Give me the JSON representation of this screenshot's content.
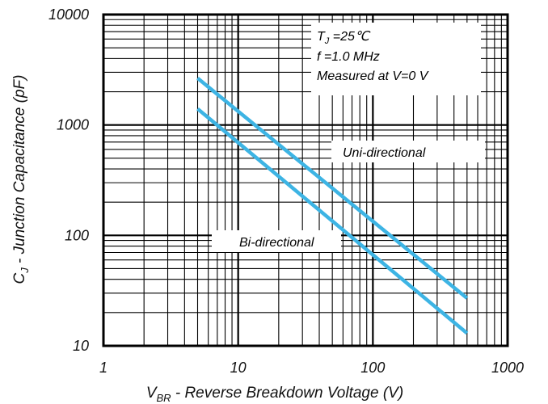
{
  "chart_data": {
    "type": "line",
    "x_scale": "log",
    "y_scale": "log",
    "xlim": [
      1,
      1000
    ],
    "ylim": [
      10,
      10000
    ],
    "x_ticks": [
      "1",
      "10",
      "100",
      "1000"
    ],
    "y_ticks": [
      "10",
      "100",
      "1000",
      "10000"
    ],
    "grid": true,
    "xlabel": {
      "main": "V",
      "sub": "BR",
      "rest": " - Reverse Breakdown Voltage (V)"
    },
    "ylabel": {
      "main": "C",
      "sub": "J",
      "rest": " - Junction Capacitance (pF)"
    },
    "annotations": {
      "tj_main": "T",
      "tj_sub": "J",
      "tj_rest": " =25℃",
      "freq": "f =1.0 MHz",
      "measured": "Measured at V=0 V"
    },
    "line_color": "#3db4e4",
    "series": [
      {
        "name": "Uni-directional",
        "x": [
          5,
          500
        ],
        "y": [
          2650,
          27
        ]
      },
      {
        "name": "Bi-directional",
        "x": [
          5,
          500
        ],
        "y": [
          1400,
          13
        ]
      }
    ]
  }
}
